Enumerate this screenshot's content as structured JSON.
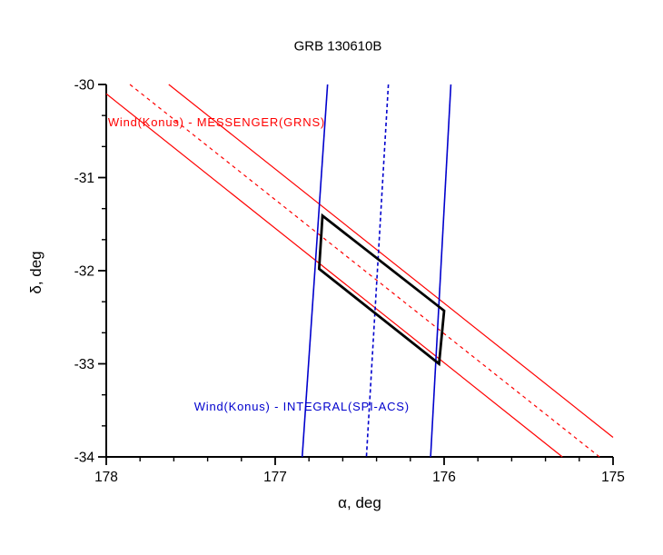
{
  "chart_data": {
    "type": "line",
    "title": "GRB 130610B",
    "xlabel": "α, deg",
    "ylabel": "δ, deg",
    "xlim": [
      178,
      175
    ],
    "ylim": [
      -30,
      -34
    ],
    "x_axis_reversed": true,
    "x_ticks": [
      178,
      177,
      176,
      175
    ],
    "y_ticks": [
      -30,
      -31,
      -32,
      -33,
      -34
    ],
    "x_minor_divisions": 5,
    "y_minor_divisions": 3,
    "grid": false,
    "frame": "left-bottom",
    "axis_color": "#000000",
    "series": [
      {
        "name": "konus-messenger-annulus-edge-upper",
        "color": "#ff0000",
        "style": "solid",
        "dash": "none",
        "width": 1.2,
        "points": [
          [
            178.0,
            -30.1
          ],
          [
            175.3,
            -34.0
          ]
        ]
      },
      {
        "name": "konus-messenger-annulus-centerline",
        "color": "#ff0000",
        "style": "dashed",
        "dash": "4,4",
        "width": 1.2,
        "points": [
          [
            177.86,
            -30.0
          ],
          [
            175.08,
            -34.0
          ]
        ]
      },
      {
        "name": "konus-messenger-annulus-edge-lower",
        "color": "#ff0000",
        "style": "solid",
        "dash": "none",
        "width": 1.2,
        "points": [
          [
            177.63,
            -30.0
          ],
          [
            175.0,
            -33.79
          ]
        ]
      },
      {
        "name": "konus-integral-annulus-edge-left",
        "color": "#0000cd",
        "style": "solid",
        "dash": "none",
        "width": 1.6,
        "points": [
          [
            176.69,
            -30.0
          ],
          [
            176.84,
            -34.0
          ]
        ]
      },
      {
        "name": "konus-integral-annulus-centerline",
        "color": "#0000cd",
        "style": "dashed",
        "dash": "4,3",
        "width": 1.6,
        "points": [
          [
            176.33,
            -30.0
          ],
          [
            176.46,
            -34.0
          ]
        ]
      },
      {
        "name": "konus-integral-annulus-edge-right",
        "color": "#0000cd",
        "style": "solid",
        "dash": "none",
        "width": 1.6,
        "points": [
          [
            175.96,
            -30.0
          ],
          [
            176.08,
            -34.0
          ]
        ]
      }
    ],
    "polygon": {
      "name": "intersection-region",
      "color": "#000000",
      "width": 2.8,
      "points": [
        [
          176.72,
          -31.41
        ],
        [
          176.0,
          -32.43
        ],
        [
          176.03,
          -33.0
        ],
        [
          176.74,
          -31.98
        ]
      ]
    },
    "annotations": [
      {
        "name": "konus-messenger-label",
        "text": "Wind(Konus) - MESSENGER(GRNS)",
        "color": "#ff0000",
        "x": 177.99,
        "y": -30.45,
        "font_size": 13,
        "letter_spacing": 0.8
      },
      {
        "name": "konus-integral-label",
        "text": "Wind(Konus) - INTEGRAL(SPI-ACS)",
        "color": "#0000cd",
        "x": 177.48,
        "y": -33.5,
        "font_size": 13,
        "letter_spacing": 0.8
      }
    ]
  }
}
